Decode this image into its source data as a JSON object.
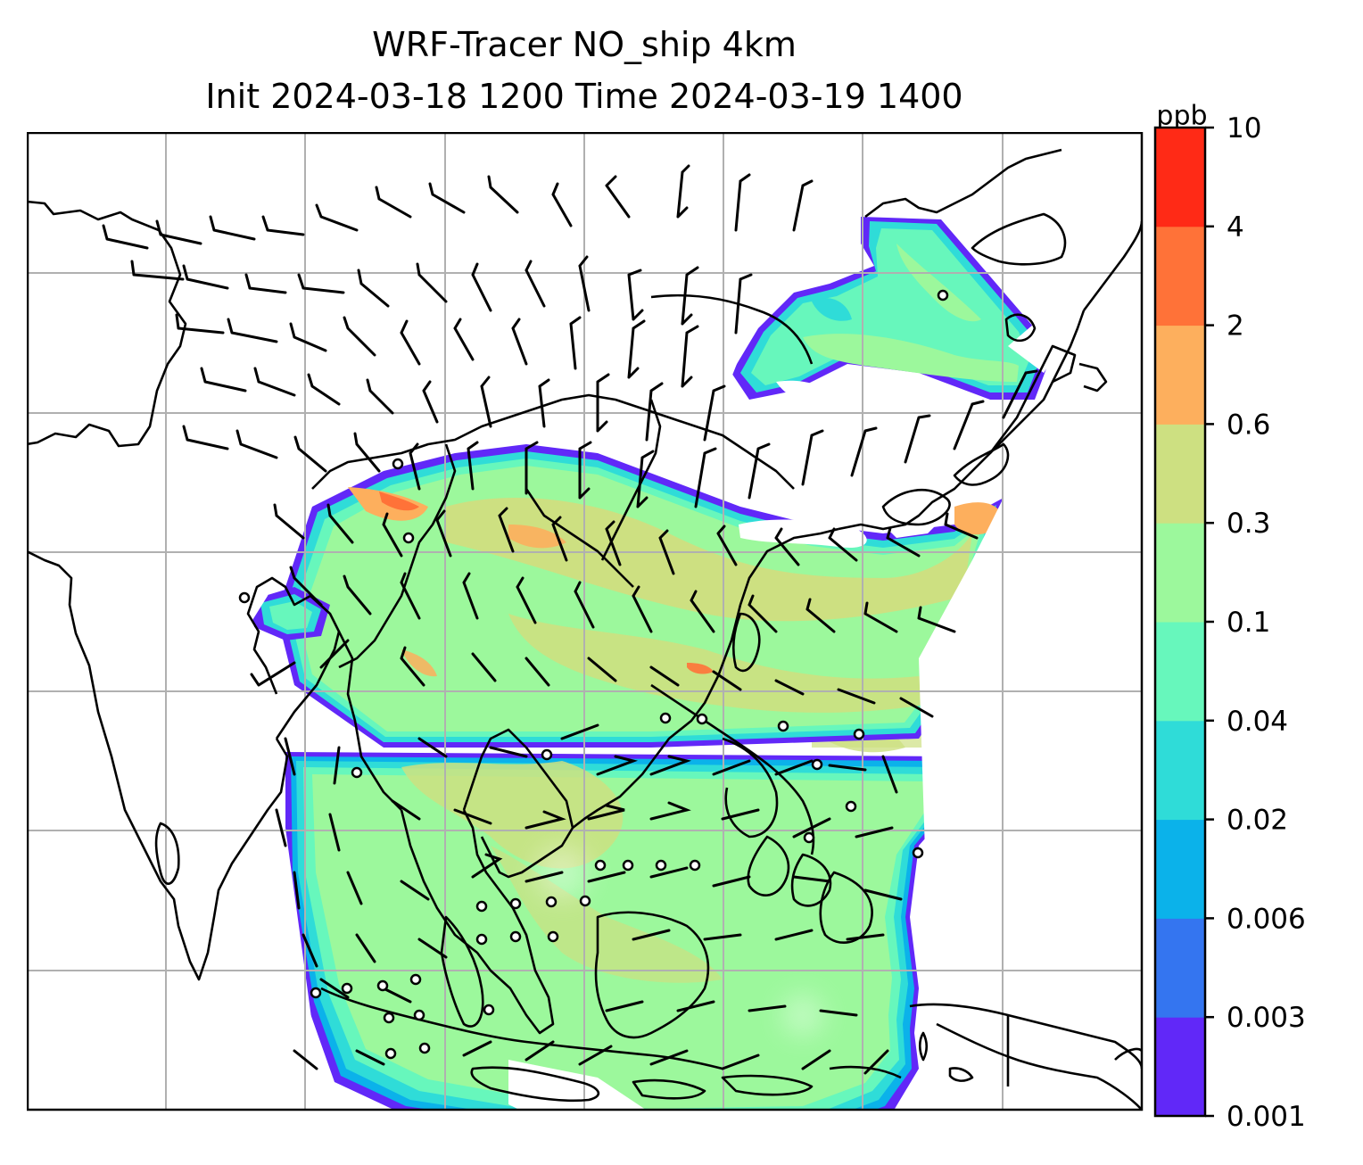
{
  "title": {
    "line1": "WRF-Tracer NO_ship 4km",
    "line2": "Init 2024-03-18 1200 Time 2024-03-19 1400"
  },
  "colorbar": {
    "unit": "ppb",
    "levels": [
      "0.001",
      "0.003",
      "0.006",
      "0.02",
      "0.04",
      "0.1",
      "0.3",
      "0.6",
      "2",
      "4",
      "10"
    ],
    "colors": [
      "#6128f8",
      "#3475f0",
      "#0bb2ea",
      "#2fdcd8",
      "#67f7bc",
      "#9cf89c",
      "#cde081",
      "#fdaf5d",
      "#ff7238",
      "#ff2a16"
    ]
  },
  "map": {
    "gridlines": true,
    "coastline_color": "#000000",
    "wind_barbs": true
  }
}
